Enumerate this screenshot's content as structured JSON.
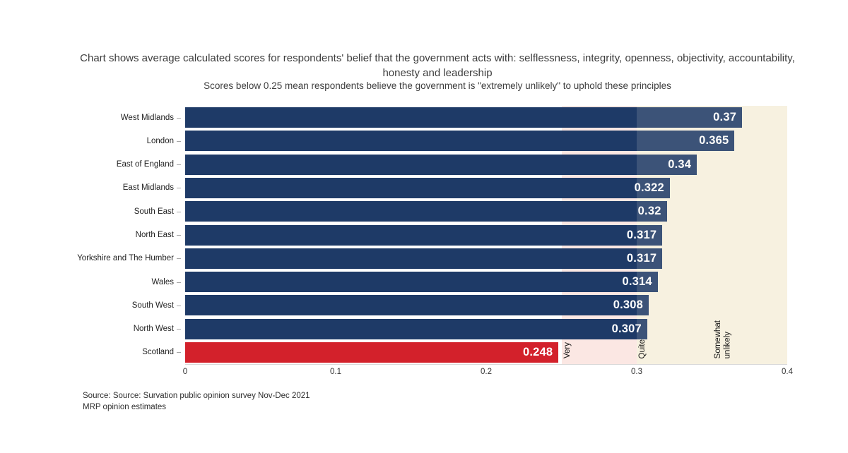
{
  "chart_data": {
    "type": "bar",
    "orientation": "horizontal",
    "title": "Chart shows average calculated scores for respondents' belief that the government acts with: selflessness, integrity, openness, objectivity, accountability, honesty and leadership",
    "subtitle": "Scores below 0.25 mean respondents believe the government is \"extremely unlikely\" to uphold these principles",
    "categories": [
      "West Midlands",
      "London",
      "East of England",
      "East Midlands",
      "South East",
      "North East",
      "Yorkshire and The Humber",
      "Wales",
      "South West",
      "North West",
      "Scotland"
    ],
    "values": [
      0.37,
      0.365,
      0.34,
      0.322,
      0.32,
      0.317,
      0.317,
      0.314,
      0.308,
      0.307,
      0.248
    ],
    "value_labels": [
      "0.37",
      "0.365",
      "0.34",
      "0.322",
      "0.32",
      "0.317",
      "0.317",
      "0.314",
      "0.308",
      "0.307",
      "0.248"
    ],
    "xlim": [
      0,
      0.4
    ],
    "x_tick_values": [
      0,
      0.1,
      0.2,
      0.3,
      0.4
    ],
    "x_tick_labels": [
      "0",
      "0.1",
      "0.2",
      "0.3",
      "0.4"
    ],
    "grid": false,
    "legend_position": "none",
    "bar_color_default": "#1e3a67",
    "bar_color_highlight": "#d3212b",
    "highlight_category": "Scotland",
    "bands": [
      {
        "from": 0.25,
        "to": 0.3,
        "color": "#fbe7e3"
      },
      {
        "from": 0.3,
        "to": 0.4,
        "color": "#f7f2e0"
      }
    ],
    "band_tint_over_bars": "rgba(248,243,225,0.14)",
    "threshold_labels": [
      {
        "x": 0.25,
        "lines": [
          "Very"
        ]
      },
      {
        "x": 0.3,
        "lines": [
          "Quite"
        ]
      },
      {
        "x": 0.35,
        "lines": [
          "Somewhat",
          "unlikely"
        ]
      }
    ]
  },
  "footer": {
    "source_line1": "Source: Source: Survation public opinion survey Nov-Dec 2021",
    "source_line2": "MRP opinion estimates"
  }
}
